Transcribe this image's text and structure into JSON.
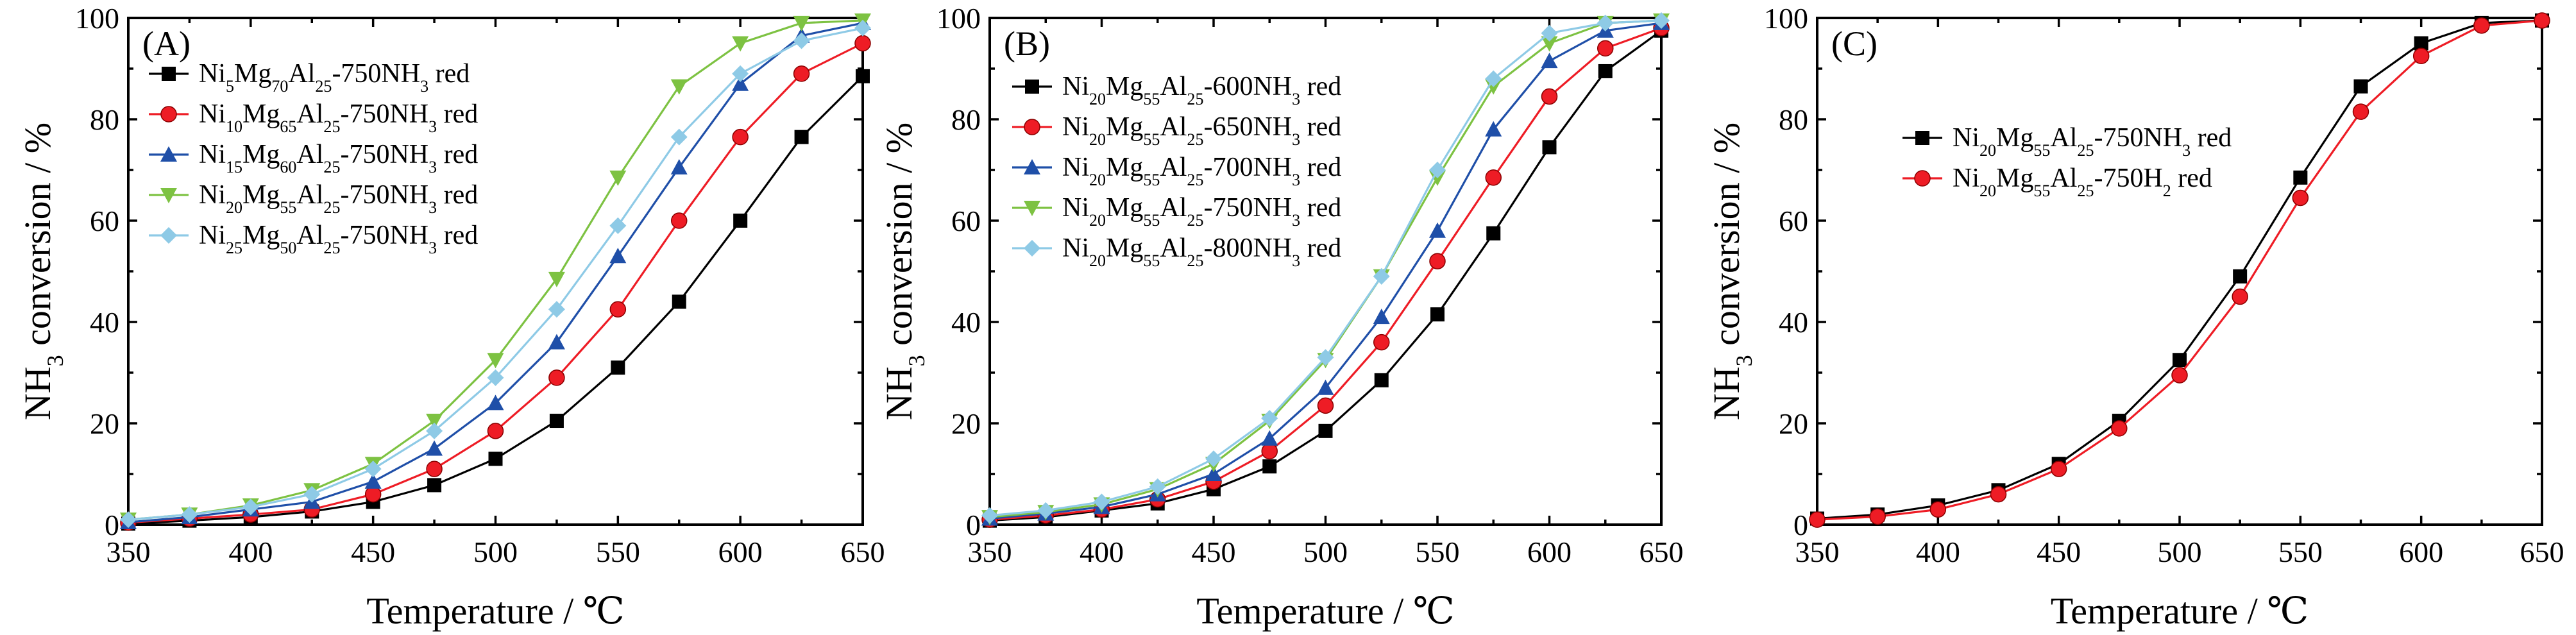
{
  "chart_data": [
    {
      "type": "line",
      "panel_label": "(A)",
      "title": "",
      "xlabel": "Temperature / ℃",
      "ylabel": "NH3 conversion / %",
      "xlim": [
        350,
        650
      ],
      "ylim": [
        0,
        100
      ],
      "xticks": [
        350,
        400,
        450,
        500,
        550,
        600,
        650
      ],
      "yticks": [
        0,
        20,
        40,
        60,
        80,
        100
      ],
      "grid": false,
      "legend_position": "top-left",
      "x": [
        350,
        375,
        400,
        425,
        450,
        475,
        500,
        525,
        550,
        575,
        600,
        625,
        650
      ],
      "series": [
        {
          "name": "Ni5Mg70Al25-750NH3 red",
          "legend_parts": [
            [
              "Ni",
              ""
            ],
            [
              "5",
              "sub"
            ],
            [
              "Mg",
              ""
            ],
            [
              "70",
              "sub"
            ],
            [
              "Al",
              ""
            ],
            [
              "25",
              "sub"
            ],
            [
              "-750NH",
              ""
            ],
            [
              "3",
              "sub"
            ],
            [
              " red",
              ""
            ]
          ],
          "color": "#000000",
          "marker": "square",
          "values": [
            0.2,
            0.8,
            1.5,
            2.6,
            4.5,
            7.8,
            13,
            20.5,
            31,
            44,
            60,
            76.5,
            88.5
          ]
        },
        {
          "name": "Ni10Mg65Al25-750NH3 red",
          "legend_parts": [
            [
              "Ni",
              ""
            ],
            [
              "10",
              "sub"
            ],
            [
              "Mg",
              ""
            ],
            [
              "65",
              "sub"
            ],
            [
              "Al",
              ""
            ],
            [
              "25",
              "sub"
            ],
            [
              "-750NH",
              ""
            ],
            [
              "3",
              "sub"
            ],
            [
              " red",
              ""
            ]
          ],
          "color": "#ee1c25",
          "marker": "circle",
          "values": [
            0.4,
            1.2,
            2,
            3,
            6,
            11,
            18.5,
            29,
            42.5,
            60,
            76.5,
            89,
            95
          ]
        },
        {
          "name": "Ni15Mg60Al25-750NH3 red",
          "legend_parts": [
            [
              "Ni",
              ""
            ],
            [
              "15",
              "sub"
            ],
            [
              "Mg",
              ""
            ],
            [
              "60",
              "sub"
            ],
            [
              "Al",
              ""
            ],
            [
              "25",
              "sub"
            ],
            [
              "-750NH",
              ""
            ],
            [
              "3",
              "sub"
            ],
            [
              " red",
              ""
            ]
          ],
          "color": "#1f4fa8",
          "marker": "triangle-up",
          "values": [
            0.5,
            1.5,
            3,
            4.5,
            8.5,
            15,
            24,
            36,
            53,
            70.5,
            87,
            96.5,
            99
          ]
        },
        {
          "name": "Ni20Mg55Al25-750NH3 red",
          "legend_parts": [
            [
              "Ni",
              ""
            ],
            [
              "20",
              "sub"
            ],
            [
              "Mg",
              ""
            ],
            [
              "55",
              "sub"
            ],
            [
              "Al",
              ""
            ],
            [
              "25",
              "sub"
            ],
            [
              "-750NH",
              ""
            ],
            [
              "3",
              "sub"
            ],
            [
              " red",
              ""
            ]
          ],
          "color": "#7dc242",
          "marker": "triangle-down",
          "values": [
            1,
            2,
            3.8,
            6.8,
            12,
            20.5,
            32.5,
            48.5,
            68.5,
            86.5,
            95,
            99,
            99.5
          ]
        },
        {
          "name": "Ni25Mg50Al25-750NH3 red",
          "legend_parts": [
            [
              "Ni",
              ""
            ],
            [
              "25",
              "sub"
            ],
            [
              "Mg",
              ""
            ],
            [
              "50",
              "sub"
            ],
            [
              "Al",
              ""
            ],
            [
              "25",
              "sub"
            ],
            [
              "-750NH",
              ""
            ],
            [
              "3",
              "sub"
            ],
            [
              " red",
              ""
            ]
          ],
          "color": "#8ecae6",
          "marker": "diamond",
          "values": [
            1,
            2,
            3.5,
            6,
            11,
            18.5,
            29,
            42.5,
            59,
            76.5,
            89,
            95.5,
            98
          ]
        }
      ]
    },
    {
      "type": "line",
      "panel_label": "(B)",
      "title": "",
      "xlabel": "Temperature / ℃",
      "ylabel": "NH3 conversion / %",
      "xlim": [
        350,
        650
      ],
      "ylim": [
        0,
        100
      ],
      "xticks": [
        350,
        400,
        450,
        500,
        550,
        600,
        650
      ],
      "yticks": [
        0,
        20,
        40,
        60,
        80,
        100
      ],
      "grid": false,
      "legend_position": "top-left",
      "x": [
        350,
        375,
        400,
        425,
        450,
        475,
        500,
        525,
        550,
        575,
        600,
        625,
        650
      ],
      "series": [
        {
          "name": "Ni20Mg55Al25-600NH3 red",
          "legend_parts": [
            [
              "Ni",
              ""
            ],
            [
              "20",
              "sub"
            ],
            [
              "Mg",
              ""
            ],
            [
              "55",
              "sub"
            ],
            [
              "Al",
              ""
            ],
            [
              "25",
              "sub"
            ],
            [
              "-600NH",
              ""
            ],
            [
              "3",
              "sub"
            ],
            [
              " red",
              ""
            ]
          ],
          "color": "#000000",
          "marker": "square",
          "values": [
            0.8,
            1.5,
            2.8,
            4.2,
            7,
            11.5,
            18.5,
            28.5,
            41.5,
            57.5,
            74.5,
            89.5,
            97.5
          ]
        },
        {
          "name": "Ni20Mg55Al25-650NH3 red",
          "legend_parts": [
            [
              "Ni",
              ""
            ],
            [
              "20",
              "sub"
            ],
            [
              "Mg",
              ""
            ],
            [
              "55",
              "sub"
            ],
            [
              "Al",
              ""
            ],
            [
              "25",
              "sub"
            ],
            [
              "-650NH",
              ""
            ],
            [
              "3",
              "sub"
            ],
            [
              " red",
              ""
            ]
          ],
          "color": "#ee1c25",
          "marker": "circle",
          "values": [
            1,
            1.8,
            3,
            5,
            8.5,
            14.5,
            23.5,
            36,
            52,
            68.5,
            84.5,
            94,
            98
          ]
        },
        {
          "name": "Ni20Mg55Al25-700NH3 red",
          "legend_parts": [
            [
              "Ni",
              ""
            ],
            [
              "20",
              "sub"
            ],
            [
              "Mg",
              ""
            ],
            [
              "55",
              "sub"
            ],
            [
              "Al",
              ""
            ],
            [
              "25",
              "sub"
            ],
            [
              "-700NH",
              ""
            ],
            [
              "3",
              "sub"
            ],
            [
              " red",
              ""
            ]
          ],
          "color": "#1f4fa8",
          "marker": "triangle-up",
          "values": [
            1.2,
            2.2,
            3.5,
            6,
            10,
            17,
            27,
            41,
            58,
            78,
            91.5,
            97.5,
            99
          ]
        },
        {
          "name": "Ni20Mg55Al25-750NH3 red",
          "legend_parts": [
            [
              "Ni",
              ""
            ],
            [
              "20",
              "sub"
            ],
            [
              "Mg",
              ""
            ],
            [
              "55",
              "sub"
            ],
            [
              "Al",
              ""
            ],
            [
              "25",
              "sub"
            ],
            [
              "-750NH",
              ""
            ],
            [
              "3",
              "sub"
            ],
            [
              " red",
              ""
            ]
          ],
          "color": "#7dc242",
          "marker": "triangle-down",
          "values": [
            1.5,
            2.5,
            4,
            7,
            12,
            20.5,
            32.5,
            49,
            68.5,
            86.5,
            95,
            99,
            99.5
          ]
        },
        {
          "name": "Ni20Mg55Al25-800NH3 red",
          "legend_parts": [
            [
              "Ni",
              ""
            ],
            [
              "20",
              "sub"
            ],
            [
              "Mg",
              ""
            ],
            [
              "55",
              "sub"
            ],
            [
              "Al",
              ""
            ],
            [
              "25",
              "sub"
            ],
            [
              "-800NH",
              ""
            ],
            [
              "3",
              "sub"
            ],
            [
              " red",
              ""
            ]
          ],
          "color": "#8ecae6",
          "marker": "diamond",
          "values": [
            1.8,
            2.8,
            4.5,
            7.5,
            13,
            21,
            33,
            49,
            70,
            88,
            97,
            99,
            99.5
          ]
        }
      ]
    },
    {
      "type": "line",
      "panel_label": "(C)",
      "title": "",
      "xlabel": "Temperature / ℃",
      "ylabel": "NH3 conversion / %",
      "xlim": [
        350,
        650
      ],
      "ylim": [
        0,
        100
      ],
      "xticks": [
        350,
        400,
        450,
        500,
        550,
        600,
        650
      ],
      "yticks": [
        0,
        20,
        40,
        60,
        80,
        100
      ],
      "grid": false,
      "legend_position": "upper-left",
      "x": [
        350,
        375,
        400,
        425,
        450,
        475,
        500,
        525,
        550,
        575,
        600,
        625,
        650
      ],
      "series": [
        {
          "name": "Ni20Mg55Al25-750NH3 red",
          "legend_parts": [
            [
              "Ni",
              ""
            ],
            [
              "20",
              "sub"
            ],
            [
              "Mg",
              ""
            ],
            [
              "55",
              "sub"
            ],
            [
              "Al",
              ""
            ],
            [
              "25",
              "sub"
            ],
            [
              "-750NH",
              ""
            ],
            [
              "3",
              "sub"
            ],
            [
              " red",
              ""
            ]
          ],
          "color": "#000000",
          "marker": "square",
          "values": [
            1.2,
            2,
            3.8,
            6.8,
            12,
            20.5,
            32.5,
            49,
            68.5,
            86.5,
            95,
            99,
            99.5
          ]
        },
        {
          "name": "Ni20Mg55Al25-750H2 red",
          "legend_parts": [
            [
              "Ni",
              ""
            ],
            [
              "20",
              "sub"
            ],
            [
              "Mg",
              ""
            ],
            [
              "55",
              "sub"
            ],
            [
              "Al",
              ""
            ],
            [
              "25",
              "sub"
            ],
            [
              "-750H",
              ""
            ],
            [
              "2",
              "sub"
            ],
            [
              " red",
              ""
            ]
          ],
          "color": "#ee1c25",
          "marker": "circle",
          "values": [
            1,
            1.6,
            3,
            6,
            11,
            19,
            29.5,
            45,
            64.5,
            81.5,
            92.5,
            98.5,
            99.5
          ]
        }
      ]
    }
  ]
}
